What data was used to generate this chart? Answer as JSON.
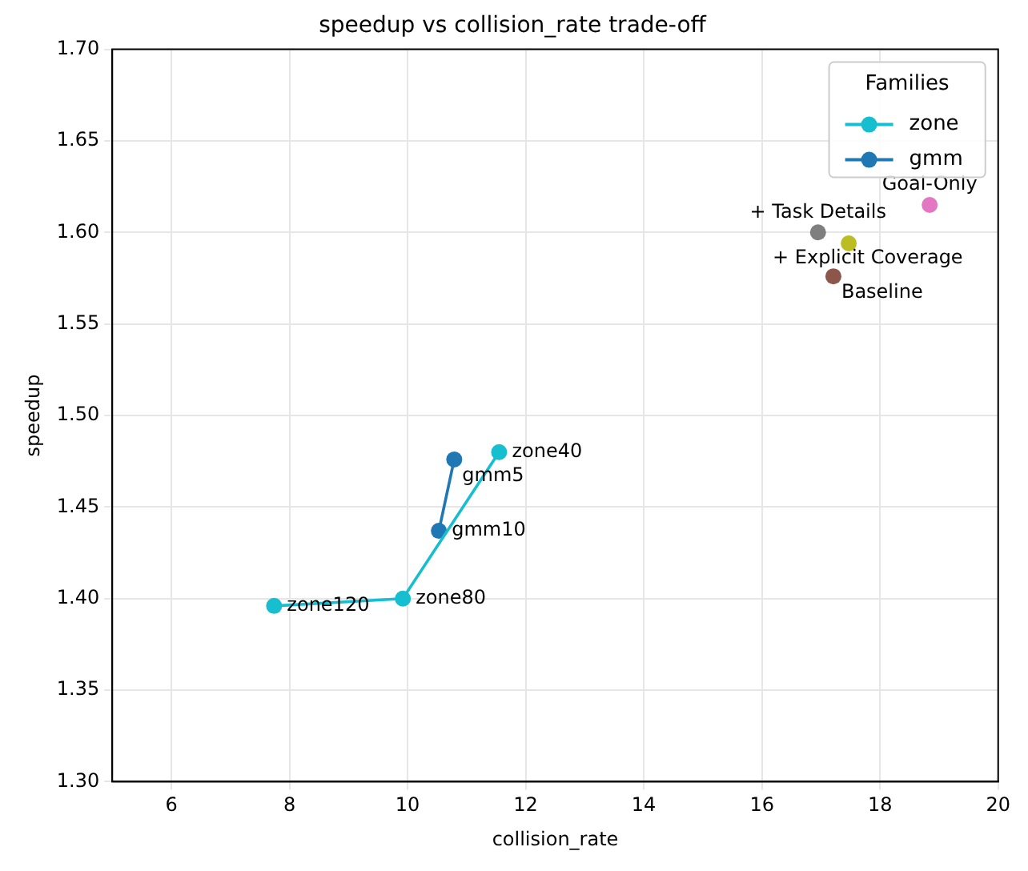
{
  "chart_data": {
    "type": "scatter",
    "title": "speedup vs collision_rate trade-off",
    "xlabel": "collision_rate",
    "ylabel": "speedup",
    "legend_title": "Families",
    "series": [
      {
        "name": "zone",
        "type": "line",
        "color": "#17becf",
        "x": [
          11.55,
          9.92,
          7.74
        ],
        "values": [
          1.48,
          1.4,
          1.396
        ]
      },
      {
        "name": "gmm",
        "type": "line",
        "color": "#1f77b4",
        "x": [
          10.79,
          10.53
        ],
        "values": [
          1.476,
          1.437
        ]
      },
      {
        "type": "scatter",
        "color": "#e377c2",
        "x": [
          18.84
        ],
        "values": [
          1.615
        ]
      },
      {
        "type": "scatter",
        "color": "#7f7f7f",
        "x": [
          16.95
        ],
        "values": [
          1.6
        ]
      },
      {
        "type": "scatter",
        "color": "#bcbd22",
        "x": [
          17.47
        ],
        "values": [
          1.594
        ]
      },
      {
        "type": "scatter",
        "color": "#8c564b",
        "x": [
          17.21
        ],
        "values": [
          1.576
        ]
      }
    ],
    "annotations": [
      {
        "text": "zone40",
        "x": 11.55,
        "y": 1.48
      },
      {
        "text": "zone80",
        "x": 9.92,
        "y": 1.4
      },
      {
        "text": "zone120",
        "x": 7.74,
        "y": 1.396
      },
      {
        "text": "gmm5",
        "x": 10.79,
        "y": 1.476
      },
      {
        "text": "gmm10",
        "x": 10.53,
        "y": 1.437
      },
      {
        "text": "Goal-Only",
        "x": 18.84,
        "y": 1.615
      },
      {
        "text": "+ Task Details",
        "x": 16.95,
        "y": 1.6
      },
      {
        "text": "+ Explicit Coverage",
        "x": 17.47,
        "y": 1.594
      },
      {
        "text": "Baseline",
        "x": 17.21,
        "y": 1.576
      }
    ],
    "xlim": [
      5,
      20
    ],
    "xticks": [
      6,
      8,
      10,
      12,
      14,
      16,
      18,
      20
    ],
    "ylim": [
      1.3,
      1.7
    ],
    "yticks": [
      {
        "value": 1.3,
        "label": "1.30"
      },
      1.35,
      {
        "value": 1.4,
        "label": "1.40"
      },
      1.45,
      {
        "value": 1.5,
        "label": "1.50"
      },
      1.55,
      {
        "value": 1.6,
        "label": "1.60"
      },
      1.65,
      {
        "value": 1.7,
        "label": "1.70"
      }
    ],
    "grid": true,
    "legend": "top right",
    "marker": "circle",
    "line_style": "solid"
  }
}
